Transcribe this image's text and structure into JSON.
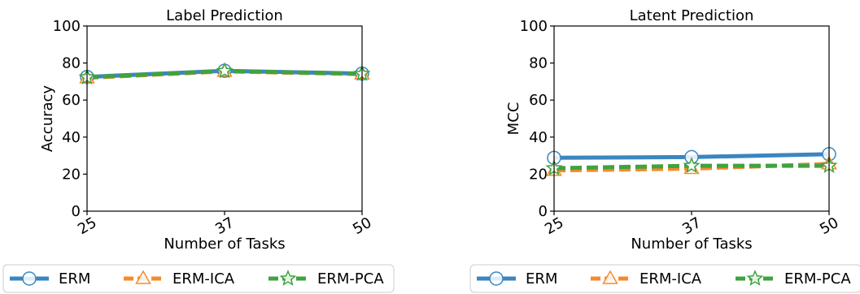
{
  "chart_data": [
    {
      "type": "line",
      "title": "Label Prediction",
      "xlabel": "Number of Tasks",
      "ylabel": "Accuracy",
      "categories": [
        "25",
        "37",
        "50"
      ],
      "ylim": [
        0,
        100
      ],
      "yticks": [
        "0",
        "20",
        "40",
        "60",
        "80",
        "100"
      ],
      "grid": false,
      "legend": "bottom",
      "series": [
        {
          "name": "ERM",
          "values": [
            72.5,
            75.8,
            74.3
          ],
          "color": "#3a86c0",
          "marker": "circle",
          "dash": "solid"
        },
        {
          "name": "ERM-ICA",
          "values": [
            72.0,
            75.5,
            74.0
          ],
          "color": "#f58b2b",
          "marker": "triangle",
          "dash": "dashed"
        },
        {
          "name": "ERM-PCA",
          "values": [
            72.3,
            75.7,
            74.2
          ],
          "color": "#3fa33f",
          "marker": "star",
          "dash": "dashed"
        }
      ]
    },
    {
      "type": "line",
      "title": "Latent Prediction",
      "xlabel": "Number of Tasks",
      "ylabel": "MCC",
      "categories": [
        "25",
        "37",
        "50"
      ],
      "ylim": [
        0,
        100
      ],
      "yticks": [
        "0",
        "20",
        "40",
        "60",
        "80",
        "100"
      ],
      "grid": false,
      "legend": "bottom",
      "series": [
        {
          "name": "ERM",
          "values": [
            28.8,
            29.2,
            30.8
          ],
          "color": "#3a86c0",
          "marker": "circle",
          "dash": "solid"
        },
        {
          "name": "ERM-ICA",
          "values": [
            22.0,
            23.0,
            25.5
          ],
          "color": "#f58b2b",
          "marker": "triangle",
          "dash": "dashed"
        },
        {
          "name": "ERM-PCA",
          "values": [
            23.2,
            24.5,
            24.5
          ],
          "color": "#3fa33f",
          "marker": "star",
          "dash": "dashed"
        }
      ]
    }
  ]
}
